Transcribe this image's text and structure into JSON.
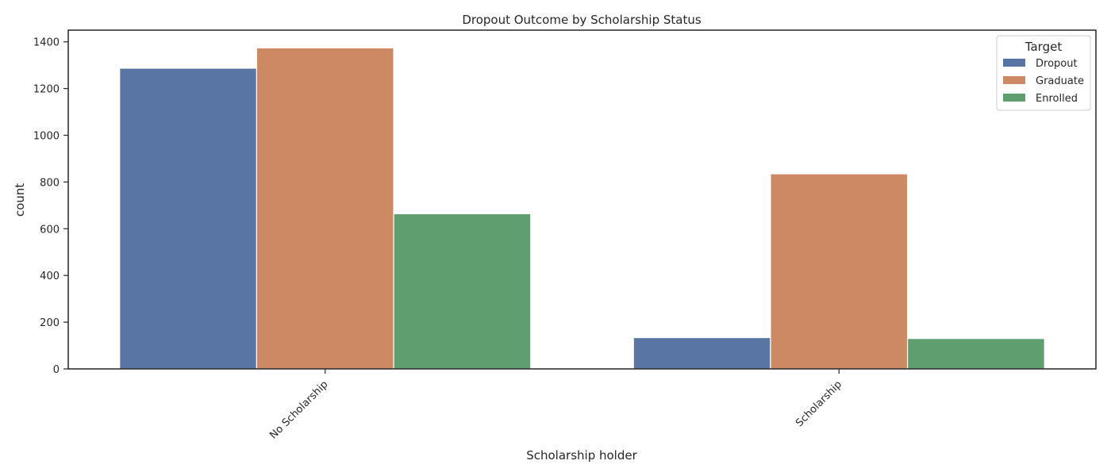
{
  "chart_data": {
    "type": "bar",
    "title": "Dropout Outcome by Scholarship Status",
    "xlabel": "Scholarship holder",
    "ylabel": "count",
    "categories": [
      "No Scholarship",
      "Scholarship"
    ],
    "series": [
      {
        "name": "Dropout",
        "values": [
          1287,
          134
        ],
        "color": "#5875a4"
      },
      {
        "name": "Graduate",
        "values": [
          1374,
          835
        ],
        "color": "#cc8963"
      },
      {
        "name": "Enrolled",
        "values": [
          664,
          130
        ],
        "color": "#5f9e6e"
      }
    ],
    "ylim": [
      0,
      1450
    ],
    "yticks": [
      0,
      200,
      400,
      600,
      800,
      1000,
      1200,
      1400
    ],
    "legend": {
      "title": "Target",
      "placement": "top-right"
    },
    "grid": false
  }
}
